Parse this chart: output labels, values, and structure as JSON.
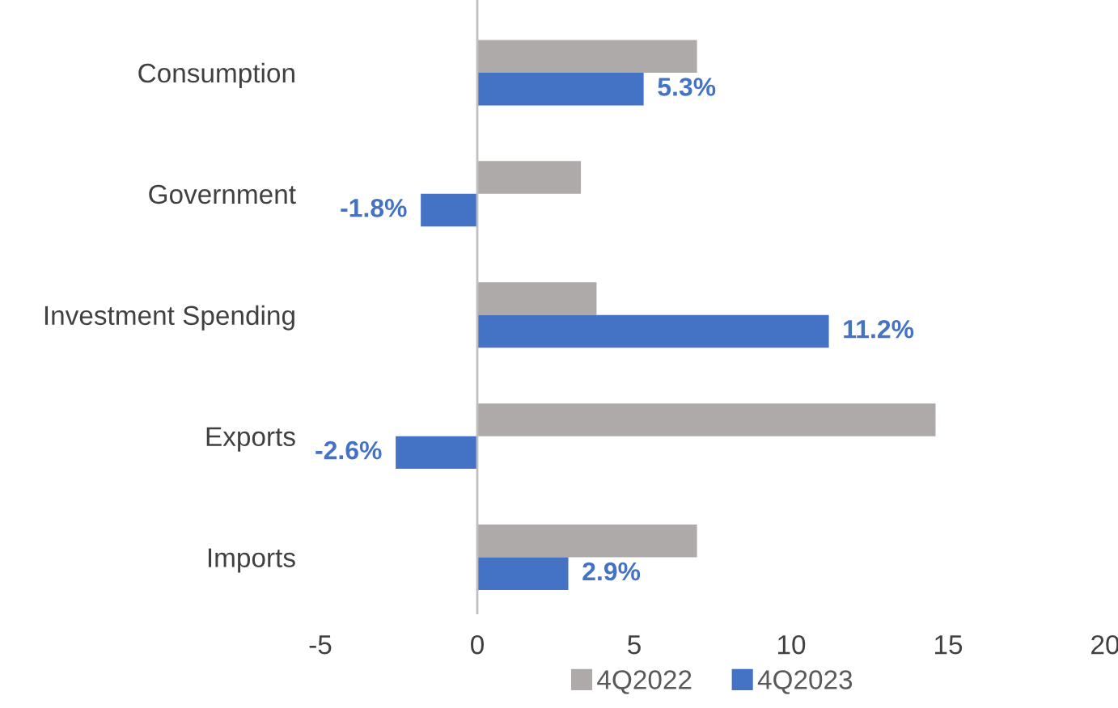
{
  "chart_data": {
    "type": "bar",
    "orientation": "horizontal",
    "categories": [
      "Consumption",
      "Government",
      "Investment Spending",
      "Exports",
      "Imports"
    ],
    "series": [
      {
        "name": "4Q2022",
        "color": "#aeaaaa",
        "values": [
          7.0,
          3.3,
          3.8,
          14.6,
          7.0
        ]
      },
      {
        "name": "4Q2023",
        "color": "#4472c4",
        "values": [
          5.3,
          -1.8,
          11.2,
          -2.6,
          2.9
        ],
        "value_labels": [
          "5.3%",
          "-1.8%",
          "11.2%",
          "-2.6%",
          "2.9%"
        ]
      }
    ],
    "ref_lines": [
      {
        "axis": "x",
        "value": 0,
        "color": "#bfbfbf"
      }
    ],
    "xlim": [
      -5,
      20
    ],
    "xticks": [
      -5,
      0,
      5,
      10,
      15,
      20
    ],
    "grid": false,
    "legend": "bottom"
  }
}
